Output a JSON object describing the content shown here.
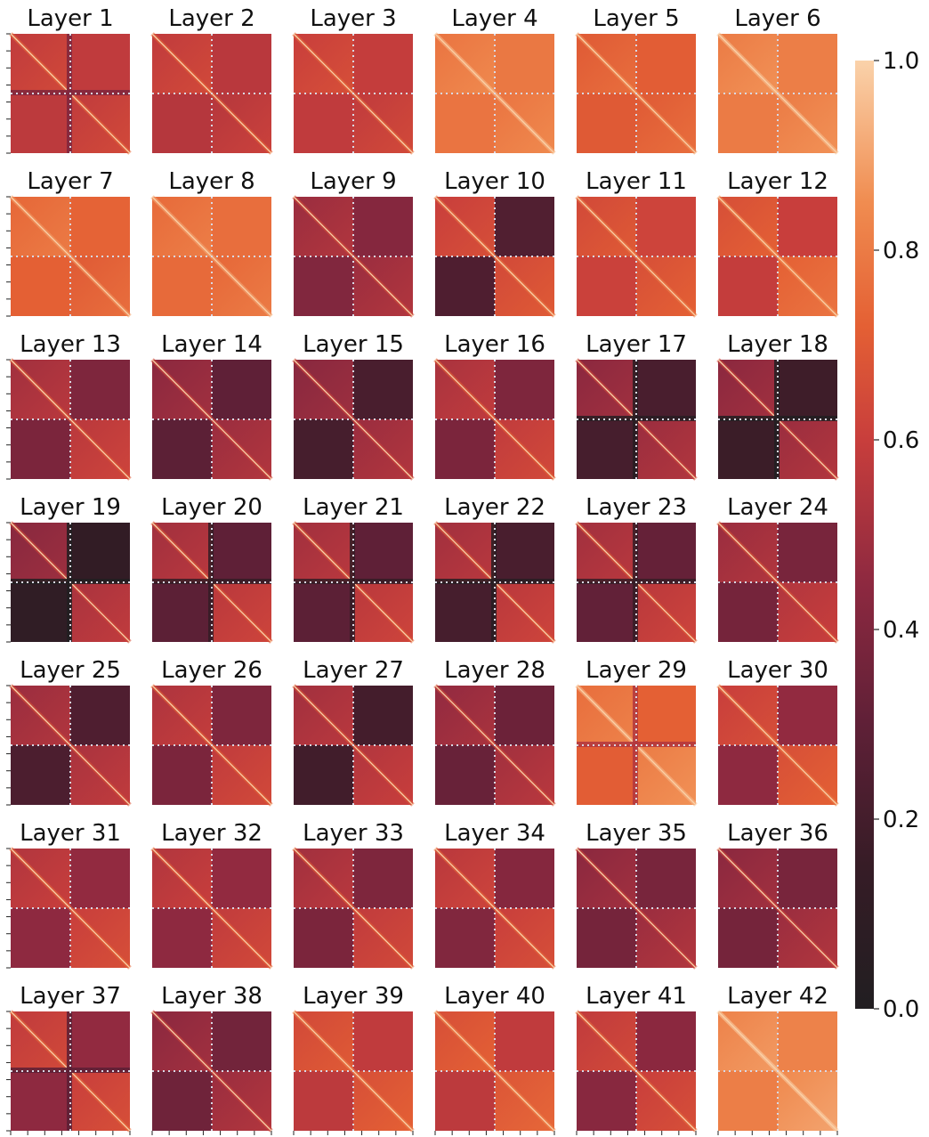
{
  "chart_data": {
    "type": "heatmap",
    "title": "",
    "colormap": "rocket",
    "vmin": 0.0,
    "vmax": 1.0,
    "grid": false,
    "legend_position": "right",
    "colorbar_ticks": [
      "0.0",
      "0.2",
      "0.4",
      "0.6",
      "0.8",
      "1.0"
    ],
    "divider_style": "dotted white lines splitting each matrix into four blocks",
    "diagonal_value": 1.0,
    "panels": [
      {
        "title": "Layer 1",
        "diag_tl": 0.6,
        "diag_br": 0.6,
        "off": 0.58,
        "cross": "dark"
      },
      {
        "title": "Layer 2",
        "diag_tl": 0.6,
        "diag_br": 0.57,
        "off": 0.56,
        "cross": "light"
      },
      {
        "title": "Layer 3",
        "diag_tl": 0.62,
        "diag_br": 0.6,
        "off": 0.59,
        "cross": "light"
      },
      {
        "title": "Layer 4",
        "diag_tl": 0.8,
        "diag_br": 0.8,
        "off": 0.79,
        "cross": "light"
      },
      {
        "title": "Layer 5",
        "diag_tl": 0.72,
        "diag_br": 0.72,
        "off": 0.71,
        "cross": "light"
      },
      {
        "title": "Layer 6",
        "diag_tl": 0.82,
        "diag_br": 0.82,
        "off": 0.81,
        "cross": "light"
      },
      {
        "title": "Layer 7",
        "diag_tl": 0.76,
        "diag_br": 0.72,
        "off": 0.73,
        "cross": "light"
      },
      {
        "title": "Layer 8",
        "diag_tl": 0.77,
        "diag_br": 0.76,
        "off": 0.76,
        "cross": "light"
      },
      {
        "title": "Layer 9",
        "diag_tl": 0.5,
        "diag_br": 0.5,
        "off": 0.42,
        "cross": "light"
      },
      {
        "title": "Layer 10",
        "diag_tl": 0.62,
        "diag_br": 0.66,
        "off": 0.25,
        "cross": "light"
      },
      {
        "title": "Layer 11",
        "diag_tl": 0.66,
        "diag_br": 0.68,
        "off": 0.62,
        "cross": "light"
      },
      {
        "title": "Layer 12",
        "diag_tl": 0.68,
        "diag_br": 0.74,
        "off": 0.6,
        "cross": "light"
      },
      {
        "title": "Layer 13",
        "diag_tl": 0.52,
        "diag_br": 0.58,
        "off": 0.4,
        "cross": "light"
      },
      {
        "title": "Layer 14",
        "diag_tl": 0.46,
        "diag_br": 0.5,
        "off": 0.3,
        "cross": "light"
      },
      {
        "title": "Layer 15",
        "diag_tl": 0.45,
        "diag_br": 0.5,
        "off": 0.22,
        "cross": "light"
      },
      {
        "title": "Layer 16",
        "diag_tl": 0.54,
        "diag_br": 0.6,
        "off": 0.4,
        "cross": "light"
      },
      {
        "title": "Layer 17",
        "diag_tl": 0.46,
        "diag_br": 0.5,
        "off": 0.22,
        "cross": "dark"
      },
      {
        "title": "Layer 18",
        "diag_tl": 0.46,
        "diag_br": 0.5,
        "off": 0.18,
        "cross": "dark"
      },
      {
        "title": "Layer 19",
        "diag_tl": 0.45,
        "diag_br": 0.54,
        "off": 0.12,
        "cross": "dark"
      },
      {
        "title": "Layer 20",
        "diag_tl": 0.52,
        "diag_br": 0.58,
        "off": 0.3,
        "cross": "dark"
      },
      {
        "title": "Layer 21",
        "diag_tl": 0.52,
        "diag_br": 0.58,
        "off": 0.3,
        "cross": "dark"
      },
      {
        "title": "Layer 22",
        "diag_tl": 0.52,
        "diag_br": 0.58,
        "off": 0.22,
        "cross": "dark"
      },
      {
        "title": "Layer 23",
        "diag_tl": 0.52,
        "diag_br": 0.58,
        "off": 0.32,
        "cross": "dark"
      },
      {
        "title": "Layer 24",
        "diag_tl": 0.5,
        "diag_br": 0.56,
        "off": 0.38,
        "cross": "light"
      },
      {
        "title": "Layer 25",
        "diag_tl": 0.5,
        "diag_br": 0.54,
        "off": 0.24,
        "cross": "light"
      },
      {
        "title": "Layer 26",
        "diag_tl": 0.55,
        "diag_br": 0.6,
        "off": 0.4,
        "cross": "light"
      },
      {
        "title": "Layer 27",
        "diag_tl": 0.52,
        "diag_br": 0.56,
        "off": 0.2,
        "cross": "light"
      },
      {
        "title": "Layer 28",
        "diag_tl": 0.48,
        "diag_br": 0.52,
        "off": 0.34,
        "cross": "light"
      },
      {
        "title": "Layer 29",
        "diag_tl": 0.78,
        "diag_br": 0.82,
        "off": 0.72,
        "cross": "dark"
      },
      {
        "title": "Layer 30",
        "diag_tl": 0.62,
        "diag_br": 0.68,
        "off": 0.46,
        "cross": "light"
      },
      {
        "title": "Layer 31",
        "diag_tl": 0.56,
        "diag_br": 0.62,
        "off": 0.46,
        "cross": "light"
      },
      {
        "title": "Layer 32",
        "diag_tl": 0.56,
        "diag_br": 0.6,
        "off": 0.46,
        "cross": "light"
      },
      {
        "title": "Layer 33",
        "diag_tl": 0.52,
        "diag_br": 0.6,
        "off": 0.4,
        "cross": "light"
      },
      {
        "title": "Layer 34",
        "diag_tl": 0.58,
        "diag_br": 0.62,
        "off": 0.42,
        "cross": "light"
      },
      {
        "title": "Layer 35",
        "diag_tl": 0.46,
        "diag_br": 0.5,
        "off": 0.38,
        "cross": "light"
      },
      {
        "title": "Layer 36",
        "diag_tl": 0.46,
        "diag_br": 0.5,
        "off": 0.38,
        "cross": "light"
      },
      {
        "title": "Layer 37",
        "diag_tl": 0.6,
        "diag_br": 0.62,
        "off": 0.46,
        "cross": "dark"
      },
      {
        "title": "Layer 38",
        "diag_tl": 0.46,
        "diag_br": 0.5,
        "off": 0.36,
        "cross": "light"
      },
      {
        "title": "Layer 39",
        "diag_tl": 0.66,
        "diag_br": 0.68,
        "off": 0.58,
        "cross": "light"
      },
      {
        "title": "Layer 40",
        "diag_tl": 0.68,
        "diag_br": 0.7,
        "off": 0.58,
        "cross": "light"
      },
      {
        "title": "Layer 41",
        "diag_tl": 0.6,
        "diag_br": 0.62,
        "off": 0.44,
        "cross": "light"
      },
      {
        "title": "Layer 42",
        "diag_tl": 0.84,
        "diag_br": 0.86,
        "off": 0.82,
        "cross": "light"
      }
    ]
  }
}
